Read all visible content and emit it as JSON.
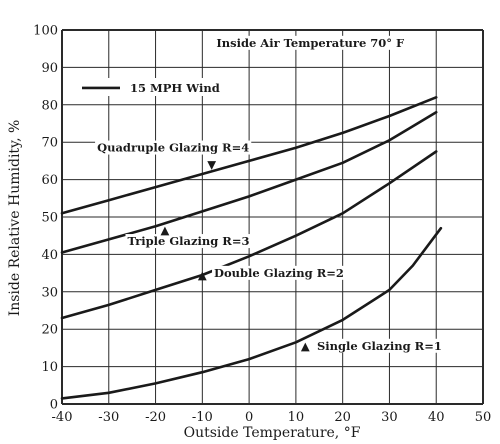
{
  "chart_data": {
    "type": "line",
    "title": "",
    "xlabel": "Outside Temperature, °F",
    "ylabel": "Inside Relative Humidity, %",
    "xlim": [
      -40,
      50
    ],
    "ylim": [
      0,
      100
    ],
    "xticks": [
      -40,
      -30,
      -20,
      -10,
      0,
      10,
      20,
      30,
      40,
      50
    ],
    "yticks": [
      0,
      10,
      20,
      30,
      40,
      50,
      60,
      70,
      80,
      90,
      100
    ],
    "grid": true,
    "legend": {
      "position": "top-left",
      "label": "15 MPH Wind"
    },
    "annotations": [
      {
        "text": "Inside Air Temperature 70° F",
        "x": -7,
        "y": 95.5
      },
      {
        "text": "Quadruple Glazing R=4",
        "x": -32.5,
        "y": 67.5,
        "marker": "▼",
        "marker_x": -8,
        "marker_y": 64
      },
      {
        "text": "Triple Glazing R=3",
        "x": -26,
        "y": 42.5,
        "marker": "▲",
        "marker_x": -18,
        "marker_y": 46.5
      },
      {
        "text": "Double Glazing R=2",
        "x": -7.5,
        "y": 34,
        "marker": "▲",
        "marker_x": -10,
        "marker_y": 34.5
      },
      {
        "text": "Single Glazing R=1",
        "x": 14.5,
        "y": 14.5,
        "marker": "▲",
        "marker_x": 12,
        "marker_y": 15.5
      }
    ],
    "series": [
      {
        "name": "Quadruple Glazing R=4",
        "x": [
          -40,
          -30,
          -20,
          -10,
          0,
          10,
          20,
          30,
          40
        ],
        "y": [
          51,
          54.5,
          58,
          61.5,
          65,
          68.5,
          72.5,
          77,
          82
        ]
      },
      {
        "name": "Triple Glazing R=3",
        "x": [
          -40,
          -30,
          -20,
          -10,
          0,
          10,
          20,
          30,
          40
        ],
        "y": [
          40.5,
          44,
          47.5,
          51.5,
          55.5,
          60,
          64.5,
          70.5,
          78
        ]
      },
      {
        "name": "Double Glazing R=2",
        "x": [
          -40,
          -30,
          -20,
          -10,
          0,
          10,
          20,
          30,
          40
        ],
        "y": [
          23,
          26.5,
          30.5,
          34.5,
          39.5,
          45,
          51,
          59,
          67.5
        ]
      },
      {
        "name": "Single Glazing R=1",
        "x": [
          -40,
          -30,
          -20,
          -10,
          0,
          10,
          20,
          30,
          35,
          41
        ],
        "y": [
          1.5,
          3,
          5.5,
          8.5,
          12,
          16.5,
          22.5,
          30.5,
          37,
          47
        ]
      }
    ],
    "colors": {
      "line": "#1a1a1a",
      "grid": "#2a2a2a",
      "background": "#ffffff"
    }
  }
}
